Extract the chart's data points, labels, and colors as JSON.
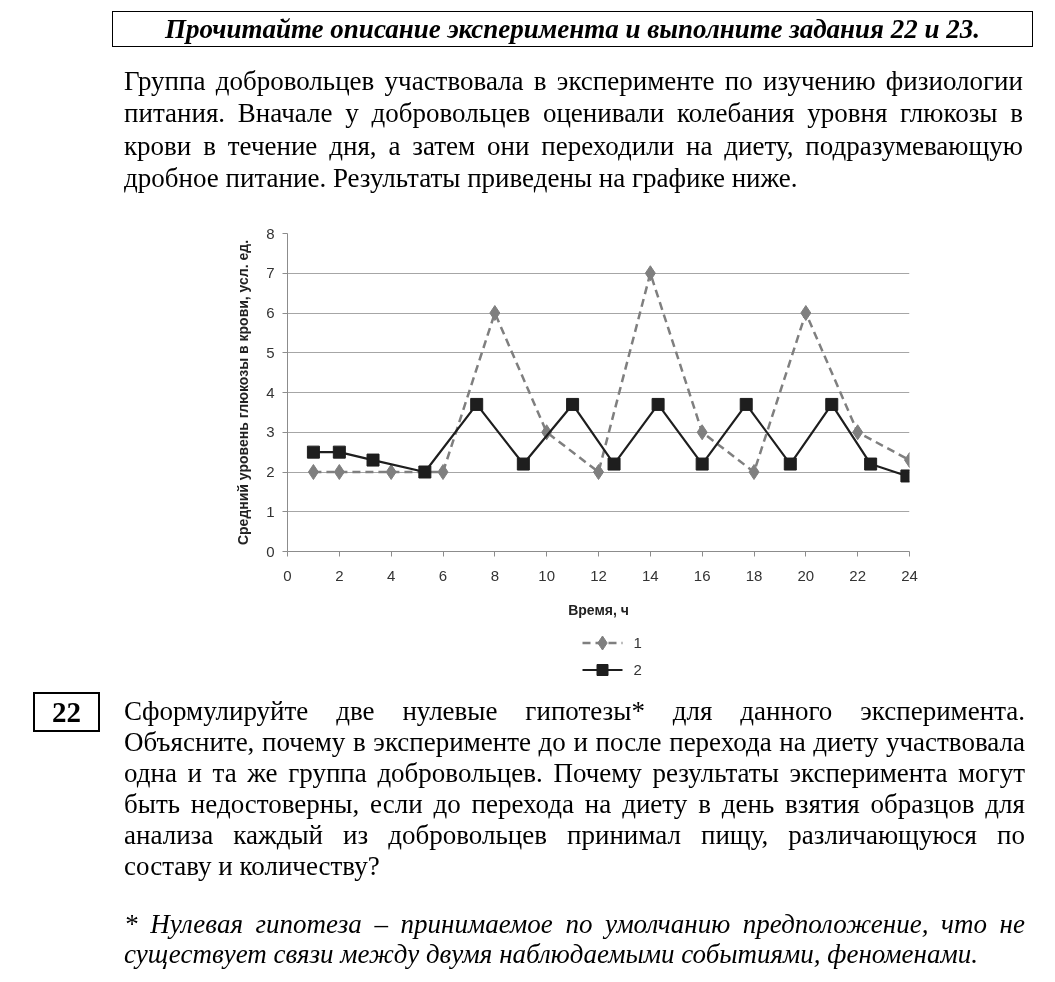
{
  "chart_data": {
    "type": "line",
    "title": "Прочитайте описание эксперимента и выполните задания 22 и 23.",
    "subtitle": "Группа добровольцев участвовала в эксперименте по изучению физиологии питания. Вначале у добровольцев оценивали колебания уровня глюкозы в крови в течение дня, а затем они переходили на диету, подразумевающую дробное питание. Результаты приведены на графике ниже.",
    "xlabel": "Время, ч",
    "ylabel": "Средний уровень глюкозы в крови, усл. ед.",
    "series": [
      {
        "name": "1",
        "color": "#7f7f7f",
        "line_style": "dashed",
        "marker": "diamond",
        "x": [
          1,
          2,
          4,
          6,
          8,
          10,
          12,
          14,
          16,
          18,
          20,
          22,
          24
        ],
        "values": [
          2,
          2,
          2,
          2,
          6,
          3,
          2,
          7,
          3,
          2,
          6,
          3,
          2.3
        ]
      },
      {
        "name": "2",
        "color": "#1e1e1e",
        "line_style": "solid",
        "marker": "square",
        "x": [
          1,
          2,
          3.3,
          5.3,
          7.3,
          9.1,
          11,
          12.6,
          14.3,
          16,
          17.7,
          19.4,
          21,
          22.5,
          23.9
        ],
        "values": [
          2.5,
          2.5,
          2.3,
          2,
          3.7,
          2.2,
          3.7,
          2.2,
          3.7,
          2.2,
          3.7,
          2.2,
          3.7,
          2.2,
          1.9
        ]
      }
    ],
    "xlim": [
      0,
      24
    ],
    "xticks": [
      0,
      2,
      4,
      6,
      8,
      10,
      12,
      14,
      16,
      18,
      20,
      22,
      24
    ],
    "ylim": [
      0,
      8
    ],
    "yticks": [
      0,
      1,
      2,
      3,
      4,
      5,
      6,
      7,
      8
    ],
    "grid": "y",
    "legend": "bottom",
    "annotations": [
      "22",
      "Сформулируйте две нулевые гипотезы* для данного эксперимента. Объясните, почему в эксперименте до и после перехода на диету участвовала одна и та же группа добровольцев. Почему результаты эксперимента могут быть недостоверны, если до перехода на диету в день взятия образцов для анализа каждый из добровольцев принимал пищу, различающуюся по составу и количеству?",
      "* Нулевая гипотеза – принимаемое по умолчанию предположение, что не существует связи между двумя наблюдаемыми событиями, феноменами."
    ]
  }
}
